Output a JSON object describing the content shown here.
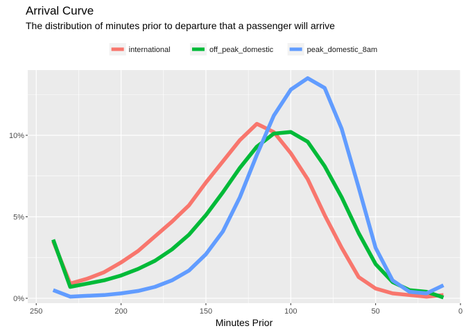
{
  "chart_data": {
    "type": "line",
    "title": "Arrival Curve",
    "subtitle": "The distribution of minutes prior to departure that a passenger will arrive",
    "xlabel": "Minutes Prior",
    "ylabel": "",
    "xlim": [
      255,
      0
    ],
    "ylim": [
      -0.003,
      0.14
    ],
    "x_reversed": true,
    "x_ticks": [
      250,
      200,
      150,
      100,
      50,
      0
    ],
    "y_ticks": [
      0,
      0.05,
      0.1
    ],
    "y_tick_labels": [
      "0%",
      "5%",
      "10%"
    ],
    "grid": true,
    "legend_position": "top",
    "x": [
      240,
      230,
      220,
      210,
      200,
      190,
      180,
      170,
      160,
      150,
      140,
      130,
      120,
      110,
      100,
      90,
      80,
      70,
      60,
      50,
      40,
      30,
      20,
      10
    ],
    "series": [
      {
        "name": "international",
        "color": "#F8766D",
        "values": [
          0.035,
          0.009,
          0.012,
          0.016,
          0.022,
          0.029,
          0.038,
          0.047,
          0.057,
          0.071,
          0.084,
          0.097,
          0.107,
          0.102,
          0.089,
          0.073,
          0.051,
          0.031,
          0.013,
          0.006,
          0.003,
          0.002,
          0.001,
          0.002
        ]
      },
      {
        "name": "off_peak_domestic",
        "color": "#00BA38",
        "values": [
          0.036,
          0.007,
          0.009,
          0.011,
          0.014,
          0.018,
          0.023,
          0.03,
          0.039,
          0.051,
          0.065,
          0.08,
          0.093,
          0.101,
          0.102,
          0.096,
          0.081,
          0.062,
          0.04,
          0.021,
          0.01,
          0.005,
          0.004,
          0.0005
        ]
      },
      {
        "name": "peak_domestic_8am",
        "color": "#619CFF",
        "values": [
          0.005,
          0.001,
          0.0015,
          0.002,
          0.003,
          0.0045,
          0.007,
          0.011,
          0.017,
          0.027,
          0.041,
          0.062,
          0.088,
          0.112,
          0.128,
          0.135,
          0.129,
          0.104,
          0.068,
          0.031,
          0.011,
          0.004,
          0.003,
          0.008
        ]
      }
    ]
  }
}
